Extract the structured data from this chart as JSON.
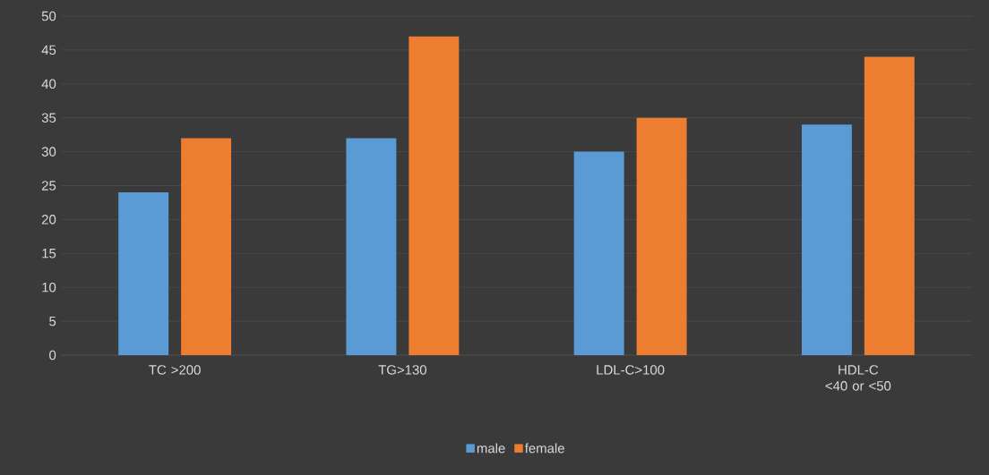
{
  "chart_data": {
    "type": "bar",
    "categories": [
      "TC >200",
      "TG>130",
      "LDL-C>100",
      "HDL-C <40 or <50"
    ],
    "series": [
      {
        "name": "male",
        "color": "#5b9bd5",
        "values": [
          24,
          32,
          30,
          34
        ]
      },
      {
        "name": "female",
        "color": "#ed7d31",
        "values": [
          32,
          47,
          35,
          44
        ]
      }
    ],
    "ylim": [
      0,
      50
    ],
    "yticks": [
      0,
      5,
      10,
      15,
      20,
      25,
      30,
      35,
      40,
      45,
      50
    ],
    "grid": "y",
    "legend": "bottom"
  }
}
